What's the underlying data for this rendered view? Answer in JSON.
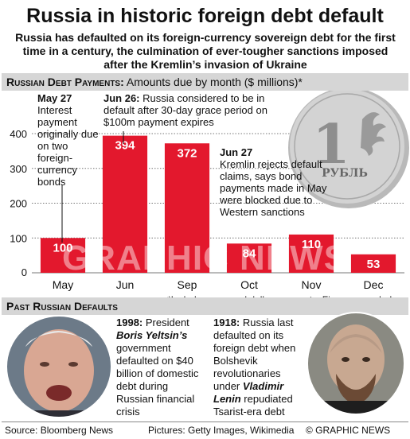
{
  "title": "Russia in historic foreign debt default",
  "subtitle": "Russia has defaulted on its foreign-currency sovereign debt for the first time in a century, the culmination of ever-tougher sanctions imposed after the Kremlin’s invasion of Ukraine",
  "section1": {
    "heading": "Russian Debt Payments:",
    "description": "Amounts due by month ($ millions)*"
  },
  "chart_data": {
    "type": "bar",
    "categories": [
      "May",
      "Jun",
      "Sep",
      "Oct",
      "Nov",
      "Dec"
    ],
    "values": [
      100,
      394,
      372,
      84,
      110,
      53
    ],
    "data_labels": [
      "100",
      "394",
      "372",
      "84",
      "110",
      "53"
    ],
    "yticks": [
      0,
      100,
      200,
      300,
      400
    ],
    "ylim": [
      0,
      420
    ],
    "bar_color": "#e3182d",
    "grid": "horizontal dotted",
    "annotations": [
      {
        "date": "May 27",
        "text": "Interest payment originally due on two foreign-currency bonds"
      },
      {
        "date": "Jun 26:",
        "text": "Russia considered to be in default after 30-day grace period on $100m payment expires"
      },
      {
        "date": "Jun 27",
        "text": "Kremlin rejects default claims, says bond payments made in May were blocked due to Western sanctions"
      }
    ]
  },
  "coin": {
    "value": "1",
    "word": "РУБЛЬ"
  },
  "footnote": "*Includes euro and dollar payments. Figures rounded",
  "section2": {
    "heading": "Past Russian Defaults"
  },
  "default_1998": {
    "year": "1998:",
    "text_before": "President",
    "name": "Boris Yeltsin’s",
    "text_after": "government defaulted on $40 billion of domestic debt during Russian financial crisis"
  },
  "default_1918": {
    "year": "1918:",
    "text_before": "Russia last defaulted on its foreign debt when Bolshevik revolutionaries under",
    "name": "Vladimir Lenin",
    "text_after": "repudiated Tsarist-era debt"
  },
  "watermark": "GRAPHIC NEWS",
  "footer": {
    "source": "Source: Bloomberg News",
    "pictures": "Pictures: Getty Images, Wikimedia",
    "credit": "© GRAPHIC NEWS"
  },
  "colors": {
    "bar": "#e3182d",
    "section_bar": "#d6d6d6",
    "coin": "#c9c9c9"
  }
}
